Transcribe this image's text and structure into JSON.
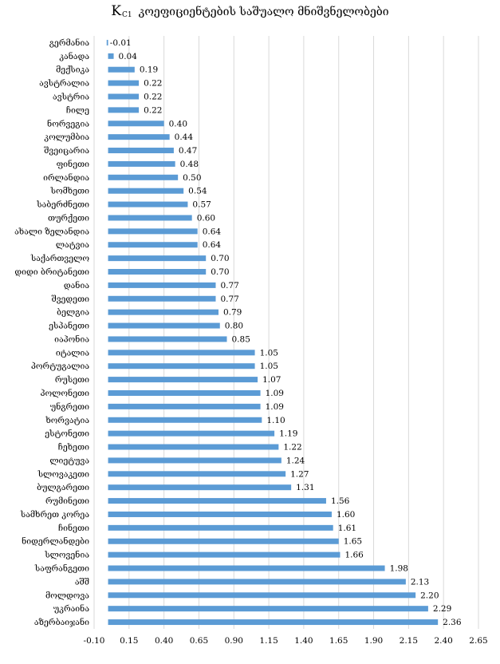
{
  "chart_data": {
    "type": "bar",
    "orientation": "horizontal",
    "title_prefix": "K",
    "title_subscript": "C1",
    "title": "კოეფიციენტების საშუალო მნიშვნელობები",
    "xlabel": "",
    "ylabel": "",
    "xlim": [
      -0.1,
      2.65
    ],
    "x_ticks": [
      "-0.10",
      "0.15",
      "0.40",
      "0.65",
      "0.90",
      "1.15",
      "1.40",
      "1.65",
      "1.90",
      "2.15",
      "2.40",
      "2.65"
    ],
    "grid": true,
    "bar_color": "#5B9BD5",
    "categories": [
      "გერმანია",
      "კანადა",
      "მექსიკა",
      "ავსტრალია",
      "ავსტრია",
      "ჩილე",
      "ნორვეგია",
      "კოლუმბია",
      "შვეიცარია",
      "ფინეთი",
      "ირლანდია",
      "სომხეთი",
      "საბერძნეთი",
      "თურქეთი",
      "ახალი ზელანდია",
      "ლატვია",
      "საქართველო",
      "დიდი ბრიტანეთი",
      "დანია",
      "შვედეთი",
      "ბელგია",
      "ესპანეთი",
      "იაპონია",
      "იტალია",
      "პორტუგალია",
      "რუსეთი",
      "პოლონეთი",
      "უნგრეთი",
      "ხორვატია",
      "ესტონეთი",
      "ჩეხეთი",
      "ლიეტუვა",
      "სლოვაკეთი",
      "ბულგარეთი",
      "რუმინეთი",
      "სამხრეთ კორეა",
      "ჩინეთი",
      "ნიდერლანდები",
      "სლოვენია",
      "საფრანგეთი",
      "აშშ",
      "მოლდოვა",
      "უკრაინა",
      "აზერბაიჯანი"
    ],
    "values": [
      -0.01,
      0.04,
      0.19,
      0.22,
      0.22,
      0.22,
      0.4,
      0.44,
      0.47,
      0.48,
      0.5,
      0.54,
      0.57,
      0.6,
      0.64,
      0.64,
      0.7,
      0.7,
      0.77,
      0.77,
      0.79,
      0.8,
      0.85,
      1.05,
      1.05,
      1.07,
      1.09,
      1.09,
      1.1,
      1.19,
      1.22,
      1.24,
      1.27,
      1.31,
      1.56,
      1.6,
      1.61,
      1.65,
      1.66,
      1.98,
      2.13,
      2.2,
      2.29,
      2.36
    ],
    "value_labels": [
      "-0.01",
      "0.04",
      "0.19",
      "0.22",
      "0.22",
      "0.22",
      "0.40",
      "0.44",
      "0.47",
      "0.48",
      "0.50",
      "0.54",
      "0.57",
      "0.60",
      "0.64",
      "0.64",
      "0.70",
      "0.70",
      "0.77",
      "0.77",
      "0.79",
      "0.80",
      "0.85",
      "1.05",
      "1.05",
      "1.07",
      "1.09",
      "1.09",
      "1.10",
      "1.19",
      "1.22",
      "1.24",
      "1.27",
      "1.31",
      "1.56",
      "1.60",
      "1.61",
      "1.65",
      "1.66",
      "1.98",
      "2.13",
      "2.20",
      "2.29",
      "2.36"
    ]
  }
}
